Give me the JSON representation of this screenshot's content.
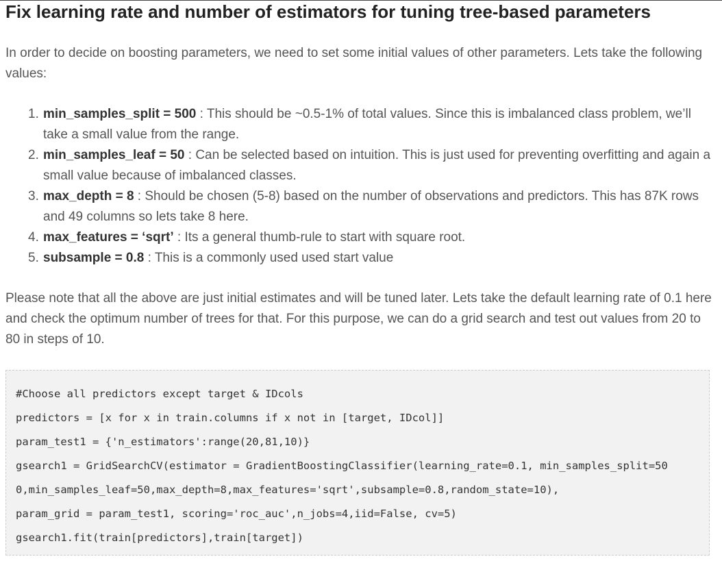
{
  "heading": "Fix learning rate and number of estimators for tuning tree-based parameters",
  "intro": "In order to decide on boosting parameters, we need to set some initial values of other parameters. Lets take the following values:",
  "params": [
    {
      "num": "1.",
      "key": "min_samples_split = 500",
      "desc": " : This should be ~0.5-1% of total values. Since this is imbalanced class problem, we’ll take a small value from the range."
    },
    {
      "num": "2.",
      "key": "min_samples_leaf = 50",
      "desc": " : Can be selected based on intuition. This is just used for preventing overfitting and again a small value because of imbalanced classes."
    },
    {
      "num": "3.",
      "key": "max_depth = 8",
      "desc": " : Should be chosen (5-8) based on the number of observations and predictors. This has 87K rows and 49 columns so lets take 8 here."
    },
    {
      "num": "4.",
      "key": "max_features = ‘sqrt’",
      "desc": " : Its a general thumb-rule to start with square root."
    },
    {
      "num": "5.",
      "key": "subsample = 0.8",
      "desc": " : This is a commonly used used start value"
    }
  ],
  "note": "Please note that all the above are just initial estimates and will be tuned later. Lets take the default learning rate of 0.1 here and check the optimum number of trees for that. For this purpose, we can do a grid search and test out values from 20 to 80 in steps of 10.",
  "code_lines": [
    "#Choose all predictors except target & IDcols",
    "predictors = [x for x in train.columns if x not in [target, IDcol]]",
    "param_test1 = {'n_estimators':range(20,81,10)}",
    "gsearch1 = GridSearchCV(estimator = GradientBoostingClassifier(learning_rate=0.1, min_samples_split=50",
    "0,min_samples_leaf=50,max_depth=8,max_features='sqrt',subsample=0.8,random_state=10),",
    "param_grid = param_test1, scoring='roc_auc',n_jobs=4,iid=False, cv=5)",
    "gsearch1.fit(train[predictors],train[target])"
  ]
}
